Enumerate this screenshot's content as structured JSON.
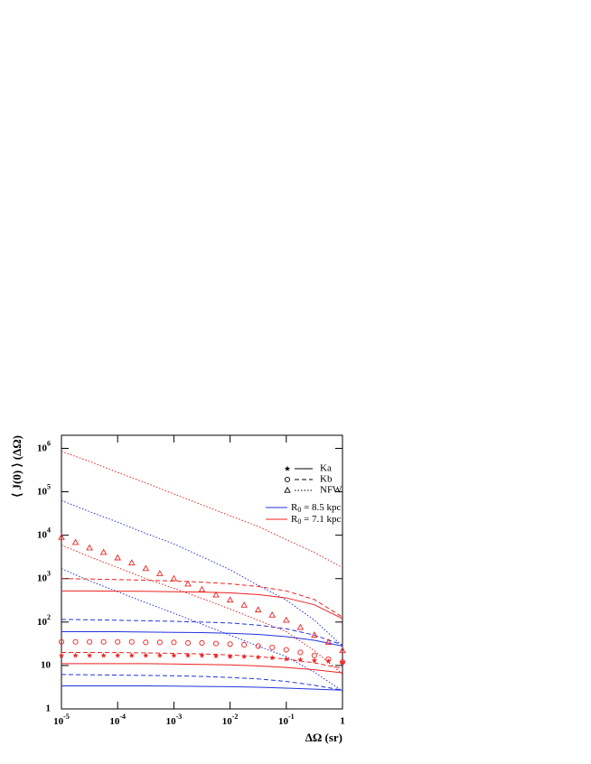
{
  "chart_data": {
    "type": "line",
    "x_label": "ΔΩ (sr)",
    "y_label": "⟨ J(0) ⟩ (ΔΩ)",
    "log_x": true,
    "log_y": true,
    "xlim": [
      1e-05,
      1
    ],
    "ylim": [
      1,
      2000000
    ],
    "xticks": [
      {
        "value": 1e-05,
        "label": "10",
        "exp": "-5"
      },
      {
        "value": 0.0001,
        "label": "10",
        "exp": "-4"
      },
      {
        "value": 0.001,
        "label": "10",
        "exp": "-3"
      },
      {
        "value": 0.01,
        "label": "10",
        "exp": "-2"
      },
      {
        "value": 0.1,
        "label": "10",
        "exp": "-1"
      },
      1
    ],
    "yticks": [
      1,
      10,
      {
        "value": 100,
        "label": "10",
        "exp": "2"
      },
      {
        "value": 1000,
        "label": "10",
        "exp": "3"
      },
      {
        "value": 10000,
        "label": "10",
        "exp": "4"
      },
      {
        "value": 100000,
        "label": "10",
        "exp": "5"
      },
      {
        "value": 1000000,
        "label": "10",
        "exp": "6"
      }
    ],
    "legend_styles": [
      {
        "label": "Ka",
        "marker": "star",
        "style": "solid"
      },
      {
        "label": "Kb",
        "marker": "circle",
        "style": "dashed"
      },
      {
        "label": "NFW",
        "marker": "triangle",
        "style": "dotted"
      }
    ],
    "legend_colors": [
      {
        "label": "R",
        "sub": "0",
        "rest": " = 8.5 kpc",
        "color": "#2233dd"
      },
      {
        "label": "R",
        "sub": "0",
        "rest": " = 7.1 kpc",
        "color": "#ee2222"
      }
    ],
    "legend_position": "upper right",
    "series": [
      {
        "style": "solid",
        "color": "#2233dd",
        "x": [
          1e-05,
          3.16e-05,
          0.0001,
          0.000316,
          0.001,
          0.00316,
          0.01,
          0.0316,
          0.1,
          0.316,
          1
        ],
        "values": [
          3.4,
          3.4,
          3.4,
          3.4,
          3.35,
          3.3,
          3.25,
          3.15,
          3.0,
          2.85,
          2.7
        ]
      },
      {
        "style": "solid",
        "color": "#2233dd",
        "x": [
          1e-05,
          3.16e-05,
          0.0001,
          0.000316,
          0.001,
          0.00316,
          0.01,
          0.0316,
          0.1,
          0.316,
          1
        ],
        "values": [
          60,
          60,
          60,
          59,
          58,
          57,
          55,
          52,
          46,
          38,
          28
        ]
      },
      {
        "style": "dashed",
        "color": "#2233dd",
        "x": [
          1e-05,
          3.16e-05,
          0.0001,
          0.000316,
          0.001,
          0.00316,
          0.01,
          0.0316,
          0.1,
          0.316,
          1
        ],
        "values": [
          115,
          113,
          110,
          107,
          104,
          100,
          95,
          85,
          70,
          50,
          30
        ]
      },
      {
        "style": "dashed",
        "color": "#2233dd",
        "x": [
          1e-05,
          3.16e-05,
          0.0001,
          0.000316,
          0.001,
          0.00316,
          0.01,
          0.0316,
          0.1,
          0.316,
          1
        ],
        "values": [
          6.2,
          6.1,
          6.0,
          5.9,
          5.8,
          5.6,
          5.3,
          4.9,
          4.3,
          3.5,
          2.7
        ]
      },
      {
        "style": "dotted",
        "color": "#2233dd",
        "x": [
          1e-05,
          3.16e-05,
          0.0001,
          0.000316,
          0.001,
          0.00316,
          0.01,
          0.0316,
          0.1,
          0.316,
          1
        ],
        "values": [
          63000,
          35000,
          20000,
          11000,
          6300,
          3200,
          1600,
          700,
          320,
          110,
          28
        ]
      },
      {
        "style": "dotted",
        "color": "#2233dd",
        "x": [
          1e-05,
          3.16e-05,
          0.0001,
          0.000316,
          0.001,
          0.00316,
          0.01,
          0.0316,
          0.1,
          0.316,
          1
        ],
        "values": [
          1700,
          890,
          500,
          280,
          160,
          89,
          50,
          28,
          16,
          7,
          2.6
        ]
      },
      {
        "style": "solid",
        "color": "#ee2222",
        "x": [
          1e-05,
          3.16e-05,
          0.0001,
          0.000316,
          0.001,
          0.00316,
          0.01,
          0.0316,
          0.1,
          0.316,
          1
        ],
        "values": [
          520,
          520,
          515,
          510,
          500,
          490,
          470,
          430,
          360,
          250,
          120
        ]
      },
      {
        "style": "solid",
        "color": "#ee2222",
        "x": [
          1e-05,
          3.16e-05,
          0.0001,
          0.000316,
          0.001,
          0.00316,
          0.01,
          0.0316,
          0.1,
          0.316,
          1
        ],
        "values": [
          11,
          11,
          11,
          11,
          10.8,
          10.6,
          10.3,
          9.8,
          9.0,
          8.0,
          6.8
        ]
      },
      {
        "style": "dashed",
        "color": "#ee2222",
        "x": [
          1e-05,
          3.16e-05,
          0.0001,
          0.000316,
          0.001,
          0.00316,
          0.01,
          0.0316,
          0.1,
          0.316,
          1
        ],
        "values": [
          1000,
          980,
          950,
          920,
          880,
          830,
          760,
          660,
          520,
          330,
          130
        ]
      },
      {
        "style": "dashed",
        "color": "#ee2222",
        "x": [
          1e-05,
          3.16e-05,
          0.0001,
          0.000316,
          0.001,
          0.00316,
          0.01,
          0.0316,
          0.1,
          0.316,
          1
        ],
        "values": [
          20,
          20,
          19.8,
          19.5,
          19,
          18.5,
          17.5,
          16,
          14,
          11.5,
          8.5
        ]
      },
      {
        "style": "dotted",
        "color": "#ee2222",
        "x": [
          1e-05,
          3.16e-05,
          0.0001,
          0.000316,
          0.001,
          0.00316,
          0.01,
          0.0316,
          0.1,
          0.316,
          1
        ],
        "values": [
          850000,
          500000,
          280000,
          160000,
          89000,
          50000,
          28000,
          16000,
          7900,
          4000,
          1800
        ]
      },
      {
        "style": "dotted",
        "color": "#ee2222",
        "x": [
          1e-05,
          3.16e-05,
          0.0001,
          0.000316,
          0.001,
          0.00316,
          0.01,
          0.0316,
          0.1,
          0.316,
          1
        ],
        "values": [
          5900,
          3200,
          1800,
          1000,
          600,
          350,
          200,
          110,
          60,
          22,
          6.3
        ]
      },
      {
        "marker": "star",
        "color": "#ee2222",
        "x": [
          1e-05,
          1.78e-05,
          3.16e-05,
          5.62e-05,
          0.0001,
          0.000178,
          0.000316,
          0.000562,
          0.001,
          0.00178,
          0.00316,
          0.00562,
          0.01,
          0.0178,
          0.0316,
          0.0562,
          0.1,
          0.178,
          0.316,
          0.562,
          1
        ],
        "values": [
          17,
          17,
          17,
          17,
          17,
          17,
          17,
          17,
          17,
          17,
          17,
          16.5,
          16,
          16,
          15.5,
          15,
          14,
          13.5,
          13,
          12.5,
          12
        ]
      },
      {
        "marker": "circle",
        "color": "#ee2222",
        "x": [
          1e-05,
          1.78e-05,
          3.16e-05,
          5.62e-05,
          0.0001,
          0.000178,
          0.000316,
          0.000562,
          0.001,
          0.00178,
          0.00316,
          0.00562,
          0.01,
          0.0178,
          0.0316,
          0.0562,
          0.1,
          0.178,
          0.316,
          0.562,
          1
        ],
        "values": [
          35,
          35,
          35,
          35,
          35,
          35,
          34,
          34,
          34,
          33,
          33,
          32,
          31,
          30,
          28,
          26,
          23,
          20,
          17,
          14,
          12
        ]
      },
      {
        "marker": "triangle",
        "color": "#ee2222",
        "x": [
          1e-05,
          1.78e-05,
          3.16e-05,
          5.62e-05,
          0.0001,
          0.000178,
          0.000316,
          0.000562,
          0.001,
          0.00178,
          0.00316,
          0.00562,
          0.01,
          0.0178,
          0.0316,
          0.0562,
          0.1,
          0.178,
          0.316,
          0.562,
          1
        ],
        "values": [
          8900,
          6800,
          5100,
          4000,
          3000,
          2300,
          1700,
          1300,
          1000,
          750,
          560,
          420,
          320,
          245,
          190,
          145,
          110,
          75,
          50,
          34,
          22
        ]
      }
    ]
  }
}
